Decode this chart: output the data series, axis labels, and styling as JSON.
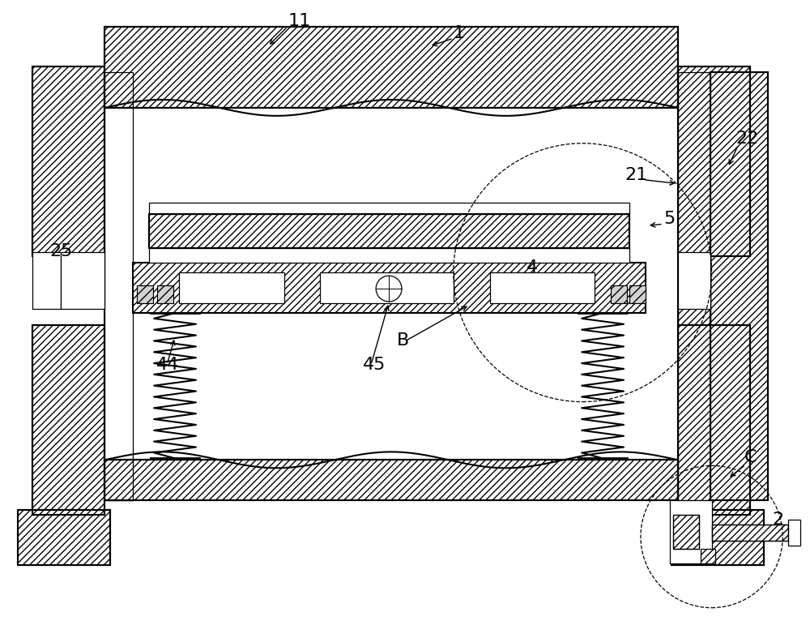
{
  "bg_color": "#ffffff",
  "line_color": "#000000",
  "fig_width": 10.0,
  "fig_height": 7.66,
  "lw_main": 1.5,
  "lw_thin": 0.9
}
